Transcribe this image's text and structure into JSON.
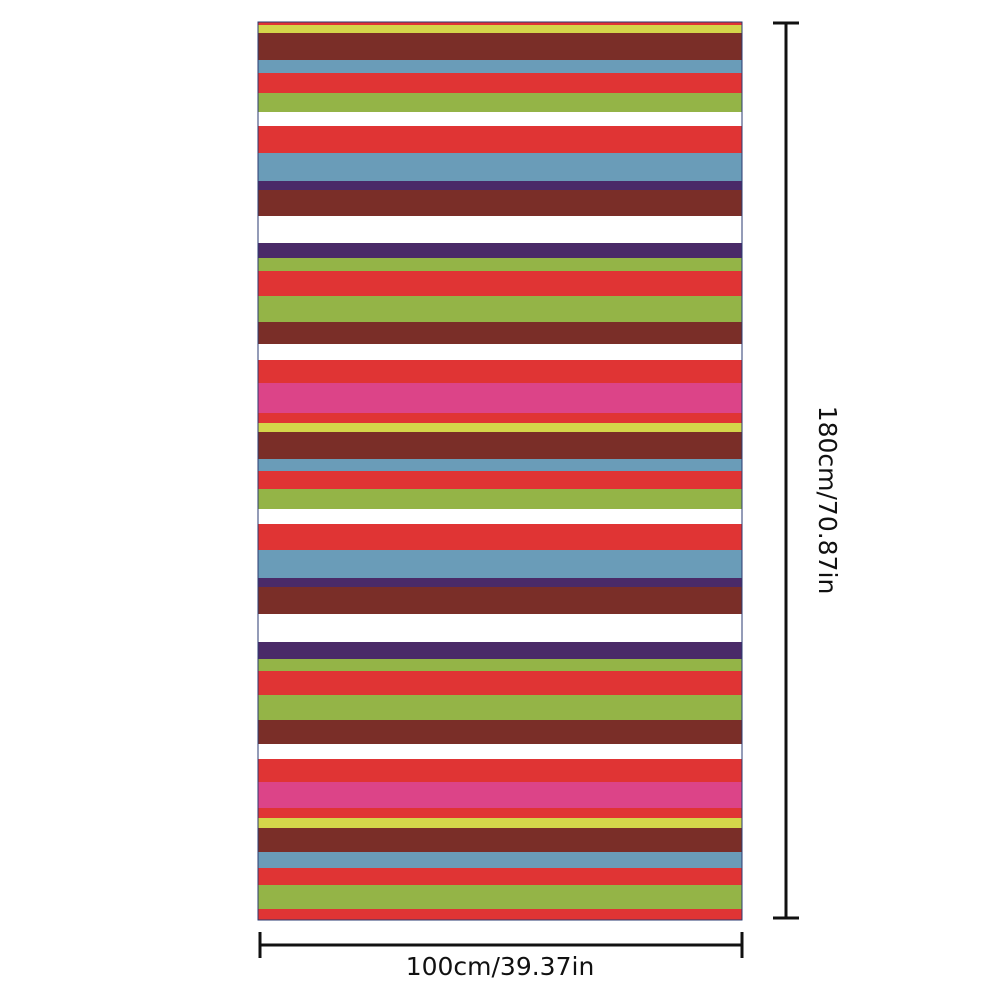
{
  "dimensions": {
    "width_label": "100cm/39.37in",
    "height_label": "180cm/70.87in"
  }
}
